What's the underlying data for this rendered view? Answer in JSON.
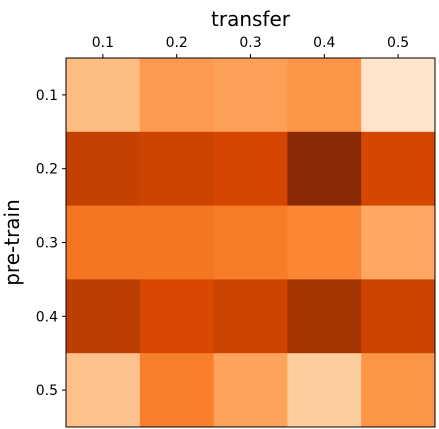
{
  "chart_data": {
    "type": "heatmap",
    "xlabel": "transfer",
    "ylabel": "pre-train",
    "x_categories": [
      "0.1",
      "0.2",
      "0.3",
      "0.4",
      "0.5"
    ],
    "y_categories": [
      "0.1",
      "0.2",
      "0.3",
      "0.4",
      "0.5"
    ],
    "colormap": "Oranges",
    "x_axis_position": "top",
    "grid": false,
    "values": [
      [
        0.32,
        0.45,
        0.43,
        0.47,
        0.13
      ],
      [
        0.8,
        0.78,
        0.76,
        0.97,
        0.76
      ],
      [
        0.58,
        0.58,
        0.56,
        0.52,
        0.4
      ],
      [
        0.82,
        0.75,
        0.78,
        0.88,
        0.78
      ],
      [
        0.3,
        0.55,
        0.42,
        0.26,
        0.47
      ]
    ]
  }
}
